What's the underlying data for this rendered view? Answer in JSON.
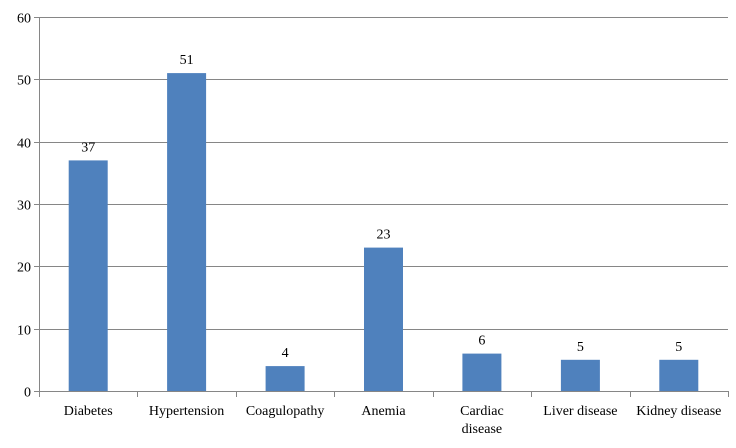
{
  "chart_data": {
    "type": "bar",
    "categories": [
      "Diabetes",
      "Hypertension",
      "Coagulopathy",
      "Anemia",
      "Cardiac disease",
      "Liver disease",
      "Kidney disease"
    ],
    "category_lines": [
      [
        "Diabetes"
      ],
      [
        "Hypertension"
      ],
      [
        "Coagulopathy"
      ],
      [
        "Anemia"
      ],
      [
        "Cardiac",
        "disease"
      ],
      [
        "Liver disease"
      ],
      [
        "Kidney disease"
      ]
    ],
    "values": [
      37,
      51,
      4,
      23,
      6,
      5,
      5
    ],
    "title": "",
    "xlabel": "",
    "ylabel": "",
    "ylim": [
      0,
      60
    ],
    "yticks": [
      0,
      10,
      20,
      30,
      40,
      50,
      60
    ],
    "grid": "horizontal",
    "legend": "none",
    "data_labels": true,
    "bar_color": "#4f81bd",
    "grid_color": "#868686",
    "axis_color": "#868686"
  }
}
